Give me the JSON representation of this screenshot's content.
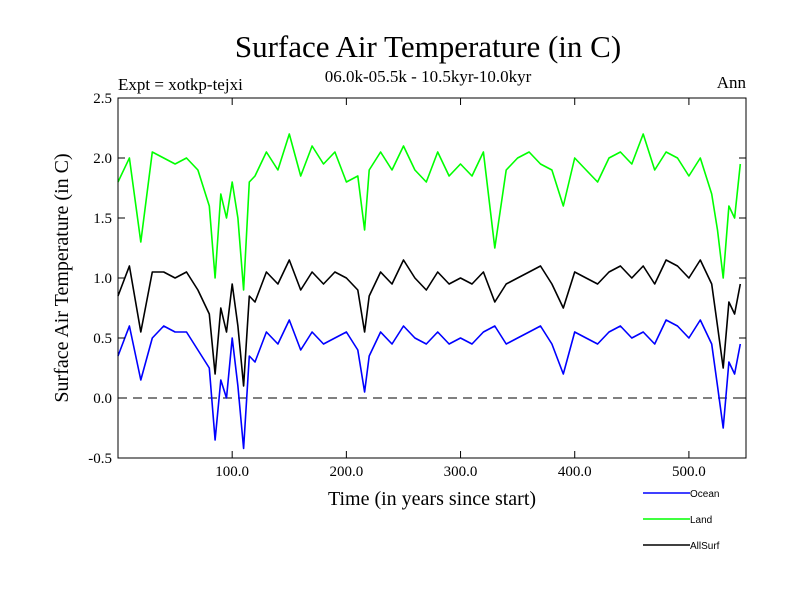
{
  "chart_data": {
    "type": "line",
    "title": "Surface Air Temperature (in C)",
    "subtitle": "06.0k-05.5k - 10.5kyr-10.0kyr",
    "left_label": "Expt = xotkp-tejxi",
    "right_label": "Ann",
    "xlabel": "Time (in years since start)",
    "ylabel": "Surface Air Temperature (in C)",
    "xlim": [
      0,
      550
    ],
    "ylim": [
      -0.5,
      2.5
    ],
    "xticks": [
      100,
      200,
      300,
      400,
      500
    ],
    "xtick_labels": [
      "100.0",
      "200.0",
      "300.0",
      "400.0",
      "500.0"
    ],
    "yticks": [
      -0.5,
      0.0,
      0.5,
      1.0,
      1.5,
      2.0,
      2.5
    ],
    "ytick_labels": [
      "-0.5",
      "0.0",
      "0.5",
      "1.0",
      "1.5",
      "2.0",
      "2.5"
    ],
    "zero_line": 0.0,
    "x": [
      0,
      10,
      20,
      30,
      40,
      50,
      60,
      70,
      80,
      85,
      90,
      95,
      100,
      105,
      110,
      115,
      120,
      130,
      140,
      150,
      160,
      170,
      180,
      190,
      200,
      210,
      216,
      220,
      230,
      240,
      250,
      260,
      270,
      280,
      290,
      300,
      310,
      320,
      330,
      340,
      350,
      360,
      370,
      380,
      390,
      400,
      410,
      420,
      430,
      440,
      450,
      460,
      470,
      480,
      490,
      500,
      510,
      520,
      525,
      530,
      535,
      540,
      545
    ],
    "series": [
      {
        "name": "Ocean",
        "color": "#0000ff",
        "values": [
          0.35,
          0.6,
          0.15,
          0.5,
          0.6,
          0.55,
          0.55,
          0.4,
          0.25,
          -0.35,
          0.15,
          0.0,
          0.5,
          0.1,
          -0.42,
          0.35,
          0.3,
          0.55,
          0.45,
          0.65,
          0.4,
          0.55,
          0.45,
          0.5,
          0.55,
          0.4,
          0.05,
          0.35,
          0.55,
          0.45,
          0.6,
          0.5,
          0.45,
          0.55,
          0.45,
          0.5,
          0.45,
          0.55,
          0.6,
          0.45,
          0.5,
          0.55,
          0.6,
          0.45,
          0.2,
          0.55,
          0.5,
          0.45,
          0.55,
          0.6,
          0.5,
          0.55,
          0.45,
          0.65,
          0.6,
          0.5,
          0.65,
          0.45,
          0.1,
          -0.25,
          0.3,
          0.2,
          0.45
        ]
      },
      {
        "name": "Land",
        "color": "#00ff00",
        "values": [
          1.8,
          2.0,
          1.3,
          2.05,
          2.0,
          1.95,
          2.0,
          1.9,
          1.6,
          1.0,
          1.7,
          1.5,
          1.8,
          1.5,
          0.9,
          1.8,
          1.85,
          2.05,
          1.9,
          2.2,
          1.85,
          2.1,
          1.95,
          2.05,
          1.8,
          1.85,
          1.4,
          1.9,
          2.05,
          1.9,
          2.1,
          1.9,
          1.8,
          2.05,
          1.85,
          1.95,
          1.85,
          2.05,
          1.25,
          1.9,
          2.0,
          2.05,
          1.95,
          1.9,
          1.6,
          2.0,
          1.9,
          1.8,
          2.0,
          2.05,
          1.95,
          2.2,
          1.9,
          2.05,
          2.0,
          1.85,
          2.0,
          1.7,
          1.4,
          1.0,
          1.6,
          1.5,
          1.95
        ]
      },
      {
        "name": "AllSurf",
        "color": "#000000",
        "values": [
          0.85,
          1.1,
          0.55,
          1.05,
          1.05,
          1.0,
          1.05,
          0.9,
          0.7,
          0.2,
          0.75,
          0.55,
          0.95,
          0.6,
          0.1,
          0.85,
          0.8,
          1.05,
          0.95,
          1.15,
          0.9,
          1.05,
          0.95,
          1.05,
          1.0,
          0.9,
          0.55,
          0.85,
          1.05,
          0.95,
          1.15,
          1.0,
          0.9,
          1.05,
          0.95,
          1.0,
          0.95,
          1.05,
          0.8,
          0.95,
          1.0,
          1.05,
          1.1,
          0.95,
          0.75,
          1.05,
          1.0,
          0.95,
          1.05,
          1.1,
          1.0,
          1.1,
          0.95,
          1.15,
          1.1,
          1.0,
          1.15,
          0.95,
          0.6,
          0.25,
          0.8,
          0.7,
          0.95
        ]
      }
    ]
  },
  "legend": [
    {
      "label": "Ocean",
      "color": "#0000ff"
    },
    {
      "label": "Land",
      "color": "#00ff00"
    },
    {
      "label": "AllSurf",
      "color": "#000000"
    }
  ]
}
